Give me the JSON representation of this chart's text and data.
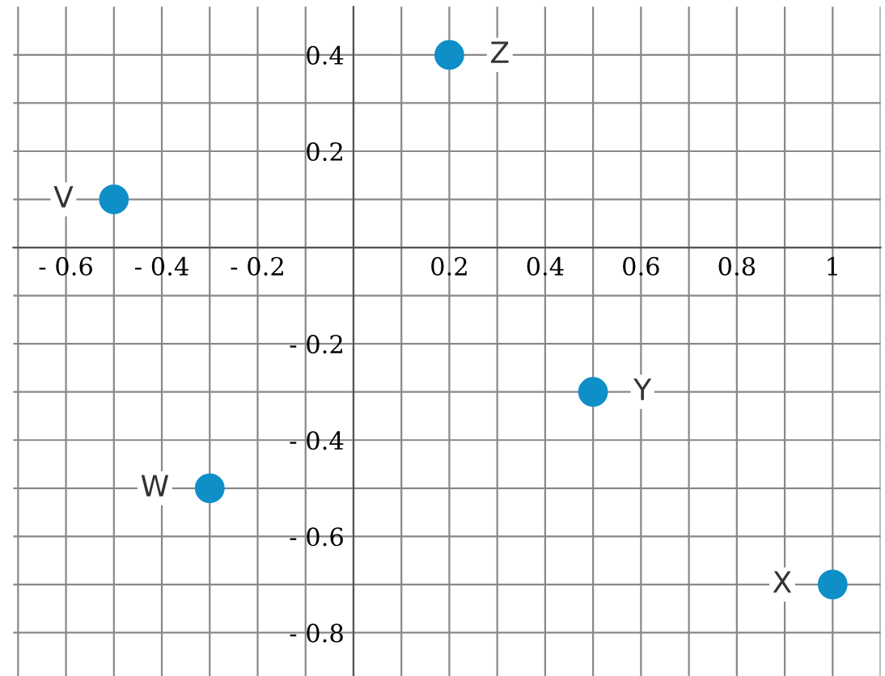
{
  "chart_data": {
    "type": "scatter",
    "x": [
      -0.5,
      0.2,
      0.5,
      -0.3,
      1.0
    ],
    "values": [
      0.1,
      0.4,
      -0.3,
      -0.5,
      -0.7
    ],
    "color": "#0f8fc8",
    "marker": "circle",
    "annotations": [
      {
        "text": "V",
        "x": -0.5,
        "y": 0.1
      },
      {
        "text": "Z",
        "x": 0.2,
        "y": 0.4
      },
      {
        "text": "Y",
        "x": 0.5,
        "y": -0.3
      },
      {
        "text": "W",
        "x": -0.3,
        "y": -0.5
      },
      {
        "text": "X",
        "x": 1.0,
        "y": -0.7
      }
    ],
    "xlim": [
      -0.71,
      1.1
    ],
    "ylim": [
      -0.89,
      0.5
    ],
    "xticks": [
      {
        "value": -0.7,
        "label": null
      },
      {
        "value": -0.6,
        "label": "- 0.6"
      },
      {
        "value": -0.5,
        "label": null
      },
      {
        "value": -0.4,
        "label": "- 0.4"
      },
      {
        "value": -0.3,
        "label": null
      },
      {
        "value": -0.2,
        "label": "- 0.2"
      },
      {
        "value": -0.1,
        "label": null
      },
      {
        "value": 0,
        "label": null
      },
      {
        "value": 0.1,
        "label": null
      },
      {
        "value": 0.2,
        "label": "0.2"
      },
      {
        "value": 0.3,
        "label": null
      },
      {
        "value": 0.4,
        "label": "0.4"
      },
      {
        "value": 0.5,
        "label": null
      },
      {
        "value": 0.6,
        "label": "0.6"
      },
      {
        "value": 0.7,
        "label": null
      },
      {
        "value": 0.8,
        "label": "0.8"
      },
      {
        "value": 0.9,
        "label": null
      },
      {
        "value": 1,
        "label": "1"
      },
      {
        "value": 1.1,
        "label": null
      }
    ],
    "yticks": [
      {
        "value": -0.8,
        "label": "- 0.8"
      },
      {
        "value": -0.7,
        "label": null
      },
      {
        "value": -0.6,
        "label": "- 0.6"
      },
      {
        "value": -0.5,
        "label": null
      },
      {
        "value": -0.4,
        "label": "- 0.4"
      },
      {
        "value": -0.3,
        "label": null
      },
      {
        "value": -0.2,
        "label": "- 0.2"
      },
      {
        "value": -0.1,
        "label": null
      },
      {
        "value": 0,
        "label": null
      },
      {
        "value": 0.1,
        "label": null
      },
      {
        "value": 0.2,
        "label": "0.2"
      },
      {
        "value": 0.3,
        "label": null
      },
      {
        "value": 0.4,
        "label": "0.4"
      }
    ],
    "grid": true
  }
}
